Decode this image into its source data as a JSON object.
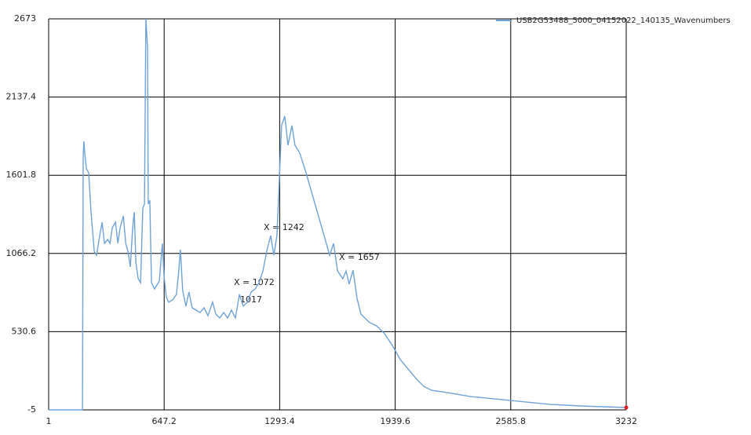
{
  "chart_data": {
    "type": "line",
    "legend_position": "top-right",
    "grid": true,
    "annotations": [
      "X = 1072",
      "1017",
      "X = 1242",
      "X = 1657"
    ],
    "xlim": [
      1,
      3232
    ],
    "xticks": [
      1,
      647.2,
      1293.4,
      1939.6,
      2585.8,
      3232
    ],
    "ylim": [
      -5,
      2673
    ],
    "yticks": [
      -5,
      530.6,
      1066.2,
      1601.8,
      2137.4,
      2673
    ],
    "x": [
      1,
      190,
      194,
      198,
      203,
      212,
      225,
      238,
      256,
      269,
      287,
      300,
      313,
      331,
      344,
      357,
      375,
      388,
      401,
      419,
      432,
      445,
      458,
      471,
      480,
      489,
      502,
      515,
      528,
      537,
      545,
      554,
      558,
      567,
      576,
      593,
      620,
      637,
      646,
      659,
      672,
      694,
      716,
      729,
      738,
      751,
      769,
      786,
      804,
      826,
      848,
      870,
      892,
      918,
      936,
      958,
      980,
      1002,
      1024,
      1046,
      1068,
      1090,
      1112,
      1134,
      1156,
      1178,
      1200,
      1221,
      1243,
      1261,
      1278,
      1291,
      1304,
      1322,
      1340,
      1362,
      1379,
      1406,
      1441,
      1485,
      1529,
      1573,
      1595,
      1617,
      1647,
      1665,
      1682,
      1704,
      1726,
      1748,
      1792,
      1836,
      1880,
      1924,
      1968,
      2012,
      2056,
      2100,
      2144,
      2232,
      2363,
      2582,
      2802,
      2978,
      3232
    ],
    "series": [
      {
        "name": "USB2G53488_5000_04152022_140135_Wavenumbers",
        "color": "#6fa3d8",
        "values": [
          -5,
          -5,
          1727,
          1834,
          1754,
          1646,
          1619,
          1350,
          1081,
          1054,
          1189,
          1280,
          1135,
          1162,
          1135,
          1243,
          1280,
          1135,
          1243,
          1323,
          1135,
          1081,
          974,
          1243,
          1350,
          1001,
          893,
          866,
          1377,
          1404,
          2673,
          2479,
          1404,
          1431,
          866,
          823,
          877,
          1135,
          920,
          769,
          732,
          748,
          786,
          947,
          1092,
          812,
          705,
          802,
          694,
          678,
          662,
          694,
          640,
          732,
          651,
          624,
          662,
          624,
          678,
          624,
          786,
          705,
          732,
          802,
          823,
          866,
          947,
          1081,
          1189,
          1054,
          1189,
          1565,
          1942,
          2006,
          1807,
          1942,
          1807,
          1754,
          1619,
          1431,
          1243,
          1054,
          1135,
          947,
          893,
          947,
          856,
          952,
          759,
          651,
          597,
          570,
          517,
          436,
          339,
          275,
          210,
          156,
          129,
          113,
          86,
          60,
          33,
          22,
          11
        ]
      }
    ]
  }
}
